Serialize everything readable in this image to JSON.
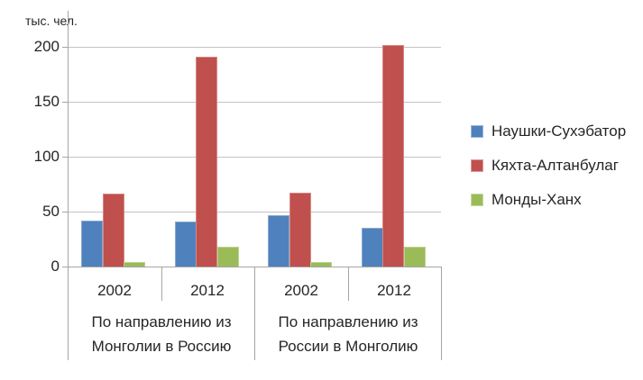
{
  "chart_data": {
    "type": "bar",
    "title": "",
    "ylabel": "тыс. чел.",
    "xlabel": "",
    "ylim": [
      0,
      200
    ],
    "yticks": [
      0,
      50,
      100,
      150,
      200
    ],
    "grid": true,
    "legend_position": "right",
    "group_labels": [
      "По направлению из Монголии в Россию",
      "По направлению из России в Монголию"
    ],
    "categories": [
      "2002",
      "2012",
      "2002",
      "2012"
    ],
    "series": [
      {
        "name": "Наушки-Сухэбатор",
        "key": "naushki-sukhebator",
        "color": "#4F81BD",
        "values": [
          42,
          41,
          47,
          35
        ]
      },
      {
        "name": "Кяхта-Алтанбулаг",
        "key": "kyakhta-altanbulag",
        "color": "#C0504D",
        "values": [
          66,
          191,
          67,
          202
        ]
      },
      {
        "name": "Монды-Ханх",
        "key": "mondy-khankh",
        "color": "#9BBB59",
        "values": [
          4,
          18,
          4,
          18
        ]
      }
    ],
    "colors": {
      "gridline": "#C3C3C3",
      "axis": "#A6A6A6",
      "text": "#262626"
    }
  }
}
